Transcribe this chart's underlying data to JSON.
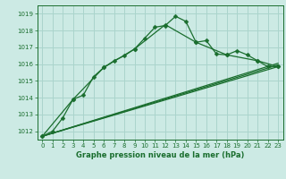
{
  "bg_color": "#cceae4",
  "grid_color": "#aad4cc",
  "line_color": "#1a6e2e",
  "title": "Graphe pression niveau de la mer (hPa)",
  "xlim": [
    -0.5,
    23.5
  ],
  "ylim": [
    1011.5,
    1019.5
  ],
  "yticks": [
    1012,
    1013,
    1014,
    1015,
    1016,
    1017,
    1018,
    1019
  ],
  "xticks": [
    0,
    1,
    2,
    3,
    4,
    5,
    6,
    7,
    8,
    9,
    10,
    11,
    12,
    13,
    14,
    15,
    16,
    17,
    18,
    19,
    20,
    21,
    22,
    23
  ],
  "series1_x": [
    0,
    1,
    2,
    3,
    4,
    5,
    6,
    7,
    8,
    9,
    10,
    11,
    12,
    13,
    14,
    15,
    16,
    17,
    18,
    19,
    20,
    21,
    22,
    23
  ],
  "series1_y": [
    1011.7,
    1012.0,
    1012.8,
    1013.9,
    1014.15,
    1015.25,
    1015.8,
    1016.2,
    1016.5,
    1016.9,
    1017.55,
    1018.2,
    1018.3,
    1018.85,
    1018.55,
    1017.3,
    1017.4,
    1016.6,
    1016.55,
    1016.8,
    1016.55,
    1016.2,
    1015.85,
    1015.85
  ],
  "series2_x": [
    0,
    3,
    6,
    9,
    12,
    15,
    18,
    21,
    23
  ],
  "series2_y": [
    1011.7,
    1013.9,
    1015.8,
    1016.9,
    1018.35,
    1017.3,
    1016.55,
    1016.2,
    1015.85
  ],
  "trend1_x": [
    0,
    23
  ],
  "trend1_y": [
    1011.7,
    1015.85
  ],
  "trend2_x": [
    0,
    23
  ],
  "trend2_y": [
    1011.7,
    1015.95
  ],
  "trend3_x": [
    0,
    23
  ],
  "trend3_y": [
    1011.7,
    1016.05
  ]
}
